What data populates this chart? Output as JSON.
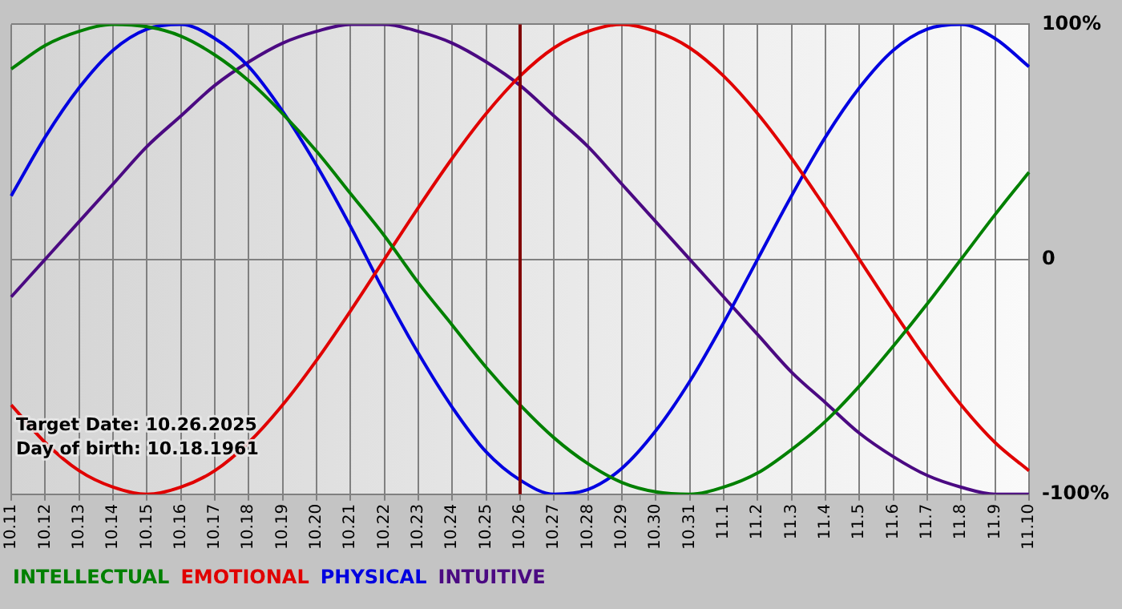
{
  "chart_data": {
    "type": "line",
    "categories": [
      "10.11",
      "10.12",
      "10.13",
      "10.14",
      "10.15",
      "10.16",
      "10.17",
      "10.18",
      "10.19",
      "10.20",
      "10.21",
      "10.22",
      "10.23",
      "10.24",
      "10.25",
      "10.26",
      "10.27",
      "10.28",
      "10.29",
      "10.30",
      "10.31",
      "11.1",
      "11.2",
      "11.3",
      "11.4",
      "11.5",
      "11.6",
      "11.7",
      "11.8",
      "11.9",
      "11.10"
    ],
    "series": [
      {
        "name": "INTELLECTUAL",
        "color": "#008000",
        "values": [
          81,
          91,
          97,
          100,
          99,
          95,
          87,
          76,
          62,
          46,
          28,
          10,
          -10,
          -28,
          -46,
          -62,
          -76,
          -87,
          -95,
          -99,
          -100,
          -97,
          -91,
          -81,
          -69,
          -54,
          -37,
          -19,
          0,
          19,
          37
        ]
      },
      {
        "name": "EMOTIONAL",
        "color": "#e00000",
        "values": [
          -62,
          -78,
          -90,
          -97,
          -100,
          -97,
          -90,
          -78,
          -62,
          -43,
          -22,
          0,
          22,
          43,
          62,
          78,
          90,
          97,
          100,
          97,
          90,
          78,
          62,
          43,
          22,
          0,
          -22,
          -43,
          -62,
          -78,
          -90
        ]
      },
      {
        "name": "PHYSICAL",
        "color": "#0000e0",
        "values": [
          27,
          52,
          73,
          89,
          98,
          100,
          94,
          82,
          63,
          40,
          14,
          -14,
          -40,
          -63,
          -82,
          -94,
          -100,
          -98,
          -89,
          -73,
          -52,
          -27,
          0,
          27,
          52,
          73,
          89,
          98,
          100,
          94,
          82
        ]
      },
      {
        "name": "INTUITIVE",
        "color": "#4b0a82",
        "values": [
          -16,
          0,
          16,
          32,
          48,
          61,
          74,
          84,
          92,
          97,
          100,
          100,
          97,
          92,
          84,
          74,
          61,
          48,
          32,
          16,
          0,
          -16,
          -32,
          -48,
          -61,
          -74,
          -84,
          -92,
          -97,
          -100,
          -100
        ]
      }
    ],
    "ylim": [
      -100,
      100
    ],
    "yticks": [
      {
        "value": -100,
        "label": "-100%"
      },
      0,
      {
        "value": 100,
        "label": "100%"
      }
    ],
    "ref_lines": [
      {
        "axis": "x",
        "value": "10.26",
        "color": "#800000"
      }
    ],
    "annotations": [
      "Target Date: 10.26.2025",
      "Day of birth: 10.18.1961"
    ],
    "grid": true,
    "legend": "bottom",
    "marker": "none",
    "line_style": "solid"
  }
}
